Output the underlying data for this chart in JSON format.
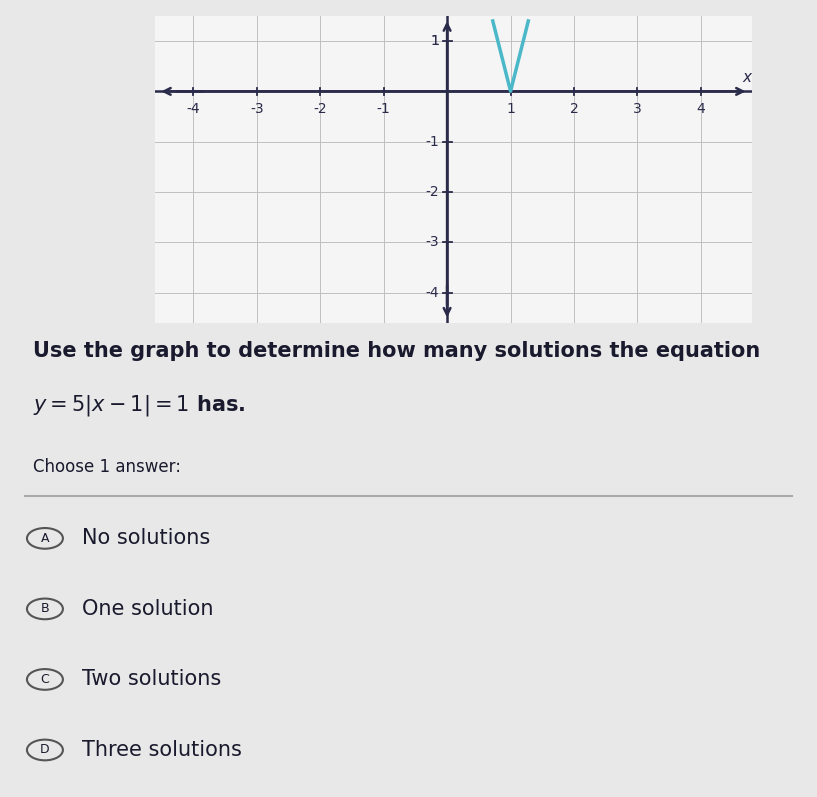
{
  "page_bg": "#e8e8e8",
  "graph_bg": "#f5f5f5",
  "x_range": [
    -4.6,
    4.8
  ],
  "y_range": [
    -4.6,
    1.5
  ],
  "x_ticks": [
    -4,
    -3,
    -2,
    -1,
    1,
    2,
    3,
    4
  ],
  "y_ticks": [
    -4,
    -3,
    -2,
    -1,
    1
  ],
  "grid_color": "#c0c0c0",
  "axis_color": "#2a2a4a",
  "curve_color": "#4ab8c8",
  "curve_vertex_x": 1,
  "curve_slope": 5,
  "question_line1": "Use the graph to determine how many solutions the equation",
  "question_line2": "y = 5|x − 1| = 1 has.",
  "choose_text": "Choose 1 answer:",
  "options": [
    {
      "label": "A",
      "text": "No solutions"
    },
    {
      "label": "B",
      "text": "One solution"
    },
    {
      "label": "C",
      "text": "Two solutions"
    },
    {
      "label": "D",
      "text": "Three solutions"
    }
  ],
  "text_color": "#1a1a2e",
  "tick_fontsize": 10,
  "question_fontsize": 15,
  "option_fontsize": 15
}
